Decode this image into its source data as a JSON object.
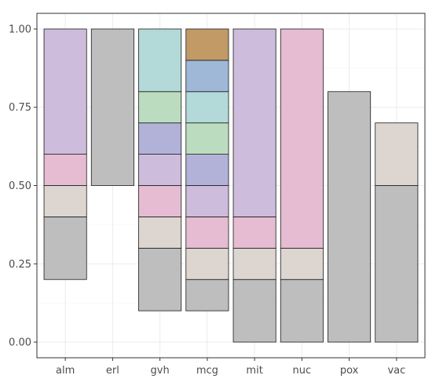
{
  "chart_data": {
    "type": "bar",
    "stacked": true,
    "title": "",
    "xlabel": "",
    "ylabel": "",
    "ylim": [
      0,
      1
    ],
    "yticks": [
      0.0,
      0.25,
      0.5,
      0.75,
      1.0
    ],
    "ytick_labels": [
      "0.00",
      "0.25",
      "0.50",
      "0.75",
      "1.00"
    ],
    "grid": true,
    "legend": "none",
    "categories": [
      "alm",
      "erl",
      "gvh",
      "mcg",
      "mit",
      "nuc",
      "pox",
      "vac"
    ],
    "bars": [
      {
        "category": "alm",
        "segments": [
          {
            "y0": 0.2,
            "y1": 0.4,
            "color": "#bebebe"
          },
          {
            "y0": 0.4,
            "y1": 0.5,
            "color": "#ddd5d0"
          },
          {
            "y0": 0.5,
            "y1": 0.6,
            "color": "#e5bcd1"
          },
          {
            "y0": 0.6,
            "y1": 1.0,
            "color": "#cdbcdb"
          }
        ]
      },
      {
        "category": "erl",
        "segments": [
          {
            "y0": 0.5,
            "y1": 1.0,
            "color": "#bebebe"
          }
        ]
      },
      {
        "category": "gvh",
        "segments": [
          {
            "y0": 0.1,
            "y1": 0.3,
            "color": "#bebebe"
          },
          {
            "y0": 0.3,
            "y1": 0.4,
            "color": "#ddd5d0"
          },
          {
            "y0": 0.4,
            "y1": 0.5,
            "color": "#e5bcd1"
          },
          {
            "y0": 0.5,
            "y1": 0.6,
            "color": "#cdbcdb"
          },
          {
            "y0": 0.6,
            "y1": 0.7,
            "color": "#b2b2d9"
          },
          {
            "y0": 0.7,
            "y1": 0.8,
            "color": "#bcdcc0"
          },
          {
            "y0": 0.8,
            "y1": 1.0,
            "color": "#b3dad8"
          }
        ]
      },
      {
        "category": "mcg",
        "segments": [
          {
            "y0": 0.1,
            "y1": 0.2,
            "color": "#bebebe"
          },
          {
            "y0": 0.2,
            "y1": 0.3,
            "color": "#ddd5d0"
          },
          {
            "y0": 0.3,
            "y1": 0.4,
            "color": "#e5bcd1"
          },
          {
            "y0": 0.4,
            "y1": 0.5,
            "color": "#cdbcdb"
          },
          {
            "y0": 0.5,
            "y1": 0.6,
            "color": "#b2b2d9"
          },
          {
            "y0": 0.6,
            "y1": 0.7,
            "color": "#bcdcc0"
          },
          {
            "y0": 0.7,
            "y1": 0.8,
            "color": "#b3dad8"
          },
          {
            "y0": 0.8,
            "y1": 0.9,
            "color": "#a0b8d8"
          },
          {
            "y0": 0.9,
            "y1": 1.0,
            "color": "#c19a66"
          }
        ]
      },
      {
        "category": "mit",
        "segments": [
          {
            "y0": 0.0,
            "y1": 0.2,
            "color": "#bebebe"
          },
          {
            "y0": 0.2,
            "y1": 0.3,
            "color": "#ddd5d0"
          },
          {
            "y0": 0.3,
            "y1": 0.4,
            "color": "#e5bcd1"
          },
          {
            "y0": 0.4,
            "y1": 1.0,
            "color": "#cdbcdb"
          }
        ]
      },
      {
        "category": "nuc",
        "segments": [
          {
            "y0": 0.0,
            "y1": 0.2,
            "color": "#bebebe"
          },
          {
            "y0": 0.2,
            "y1": 0.3,
            "color": "#ddd5d0"
          },
          {
            "y0": 0.3,
            "y1": 1.0,
            "color": "#e5bcd1"
          }
        ]
      },
      {
        "category": "pox",
        "segments": [
          {
            "y0": 0.0,
            "y1": 0.8,
            "color": "#bebebe"
          }
        ]
      },
      {
        "category": "vac",
        "segments": [
          {
            "y0": 0.0,
            "y1": 0.5,
            "color": "#bebebe"
          },
          {
            "y0": 0.5,
            "y1": 0.7,
            "color": "#ddd5d0"
          }
        ]
      }
    ]
  }
}
